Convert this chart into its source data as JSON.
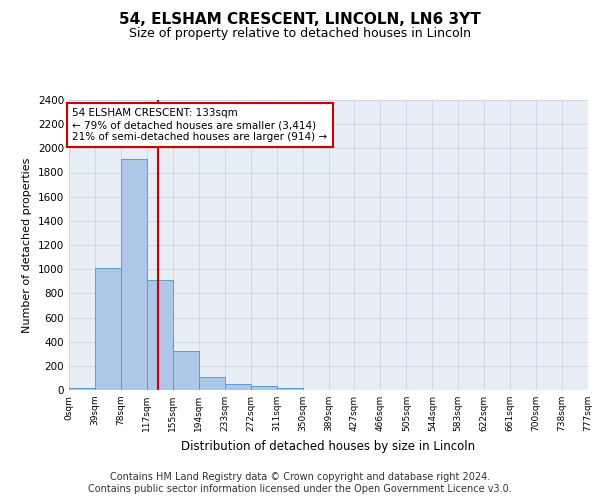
{
  "title": "54, ELSHAM CRESCENT, LINCOLN, LN6 3YT",
  "subtitle": "Size of property relative to detached houses in Lincoln",
  "xlabel": "Distribution of detached houses by size in Lincoln",
  "ylabel": "Number of detached properties",
  "bin_labels": [
    "0sqm",
    "39sqm",
    "78sqm",
    "117sqm",
    "155sqm",
    "194sqm",
    "233sqm",
    "272sqm",
    "311sqm",
    "350sqm",
    "389sqm",
    "427sqm",
    "466sqm",
    "505sqm",
    "544sqm",
    "583sqm",
    "622sqm",
    "661sqm",
    "700sqm",
    "738sqm",
    "777sqm"
  ],
  "bar_values": [
    20,
    1010,
    1910,
    910,
    320,
    110,
    50,
    30,
    20,
    0,
    0,
    0,
    0,
    0,
    0,
    0,
    0,
    0,
    0,
    0
  ],
  "bar_color": "#aec6e8",
  "bar_edge_color": "#5b9bd5",
  "vline_x": 3.43,
  "vline_color": "#cc0000",
  "annotation_text": "54 ELSHAM CRESCENT: 133sqm\n← 79% of detached houses are smaller (3,414)\n21% of semi-detached houses are larger (914) →",
  "annotation_box_color": "#ffffff",
  "annotation_box_edge": "#cc0000",
  "ylim": [
    0,
    2400
  ],
  "yticks": [
    0,
    200,
    400,
    600,
    800,
    1000,
    1200,
    1400,
    1600,
    1800,
    2000,
    2200,
    2400
  ],
  "bg_color": "#e8eef5",
  "footer_text": "Contains HM Land Registry data © Crown copyright and database right 2024.\nContains public sector information licensed under the Open Government Licence v3.0.",
  "title_fontsize": 11,
  "subtitle_fontsize": 9,
  "footer_fontsize": 7,
  "ann_fontsize": 7.5,
  "ylabel_fontsize": 8,
  "xlabel_fontsize": 8.5
}
